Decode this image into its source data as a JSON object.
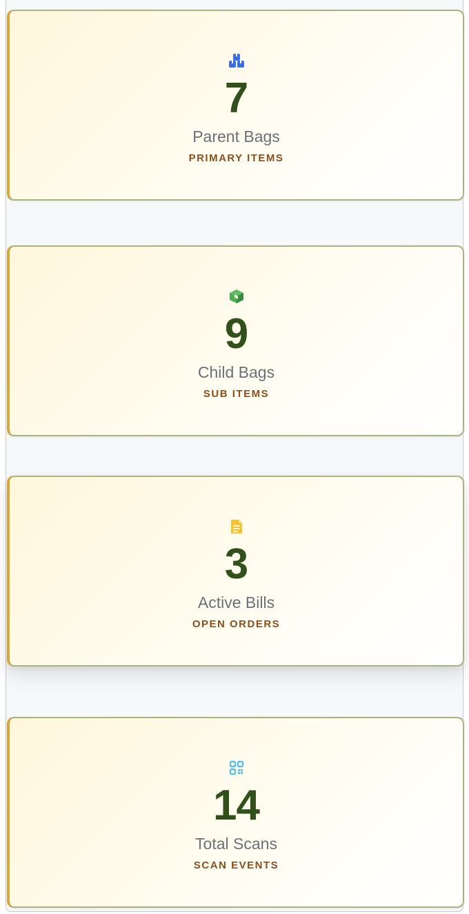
{
  "cards": [
    {
      "value": "7",
      "label": "Parent Bags",
      "sublabel": "PRIMARY ITEMS",
      "icon": "boxes-icon",
      "icon_color": "#3b6fe0"
    },
    {
      "value": "9",
      "label": "Child Bags",
      "sublabel": "SUB ITEMS",
      "icon": "box-icon",
      "icon_color": "#4caf50"
    },
    {
      "value": "3",
      "label": "Active Bills",
      "sublabel": "OPEN ORDERS",
      "icon": "document-icon",
      "icon_color": "#f4c232"
    },
    {
      "value": "14",
      "label": "Total Scans",
      "sublabel": "SCAN EVENTS",
      "icon": "qr-code-icon",
      "icon_color": "#5bc0e6"
    }
  ],
  "colors": {
    "value_text": "#32501b",
    "label_text": "#6b7077",
    "sublabel_text": "#8a4f1e",
    "card_border": "#a9b37e",
    "card_accent": "#d4a83c"
  }
}
